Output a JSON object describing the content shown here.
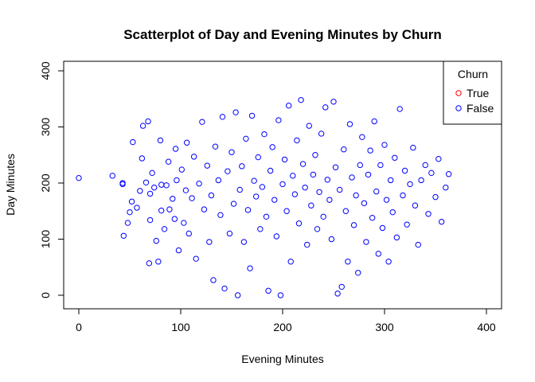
{
  "chart_data": {
    "type": "scatter",
    "title": "Scatterplot of Day and Evening Minutes by Churn",
    "xlabel": "Evening Minutes",
    "ylabel": "Day Minutes",
    "xlim": [
      0,
      400
    ],
    "ylim": [
      0,
      400
    ],
    "x_ticks": [
      0,
      100,
      200,
      300,
      400
    ],
    "y_ticks": [
      0,
      100,
      200,
      300,
      400
    ],
    "grid": false,
    "legend": {
      "title": "Churn",
      "placement": "top-right",
      "entries": [
        {
          "label": "True",
          "color": "#ff0000"
        },
        {
          "label": "False",
          "color": "#0000ff"
        }
      ]
    },
    "series": [
      {
        "name": "True",
        "color": "#ff0000",
        "points": []
      },
      {
        "name": "False",
        "color": "#0000ff",
        "points": [
          [
            0,
            209
          ],
          [
            33,
            213
          ],
          [
            43,
            200
          ],
          [
            43,
            198
          ],
          [
            44,
            106
          ],
          [
            48,
            129
          ],
          [
            50,
            148
          ],
          [
            52,
            167
          ],
          [
            53,
            273
          ],
          [
            57,
            156
          ],
          [
            60,
            186
          ],
          [
            62,
            244
          ],
          [
            63,
            302
          ],
          [
            66,
            201
          ],
          [
            68,
            310
          ],
          [
            69,
            57
          ],
          [
            70,
            181
          ],
          [
            70,
            134
          ],
          [
            72,
            218
          ],
          [
            74,
            192
          ],
          [
            76,
            97
          ],
          [
            78,
            60
          ],
          [
            80,
            276
          ],
          [
            81,
            197
          ],
          [
            81,
            151
          ],
          [
            84,
            118
          ],
          [
            86,
            196
          ],
          [
            88,
            238
          ],
          [
            89,
            153
          ],
          [
            92,
            172
          ],
          [
            94,
            136
          ],
          [
            95,
            261
          ],
          [
            96,
            205
          ],
          [
            98,
            80
          ],
          [
            101,
            224
          ],
          [
            103,
            129
          ],
          [
            105,
            187
          ],
          [
            106,
            272
          ],
          [
            108,
            110
          ],
          [
            111,
            173
          ],
          [
            113,
            247
          ],
          [
            115,
            65
          ],
          [
            118,
            199
          ],
          [
            121,
            309
          ],
          [
            123,
            153
          ],
          [
            126,
            231
          ],
          [
            128,
            95
          ],
          [
            130,
            178
          ],
          [
            132,
            27
          ],
          [
            134,
            265
          ],
          [
            137,
            205
          ],
          [
            139,
            143
          ],
          [
            141,
            318
          ],
          [
            143,
            12
          ],
          [
            146,
            221
          ],
          [
            148,
            110
          ],
          [
            150,
            255
          ],
          [
            152,
            163
          ],
          [
            154,
            326
          ],
          [
            156,
            0
          ],
          [
            158,
            188
          ],
          [
            160,
            230
          ],
          [
            162,
            95
          ],
          [
            164,
            279
          ],
          [
            166,
            152
          ],
          [
            168,
            48
          ],
          [
            170,
            320
          ],
          [
            172,
            204
          ],
          [
            174,
            176
          ],
          [
            176,
            246
          ],
          [
            178,
            118
          ],
          [
            180,
            193
          ],
          [
            182,
            287
          ],
          [
            184,
            140
          ],
          [
            186,
            8
          ],
          [
            188,
            222
          ],
          [
            190,
            264
          ],
          [
            192,
            170
          ],
          [
            194,
            105
          ],
          [
            196,
            312
          ],
          [
            198,
            0
          ],
          [
            200,
            198
          ],
          [
            202,
            242
          ],
          [
            204,
            150
          ],
          [
            206,
            338
          ],
          [
            208,
            60
          ],
          [
            210,
            213
          ],
          [
            212,
            180
          ],
          [
            214,
            276
          ],
          [
            216,
            128
          ],
          [
            218,
            348
          ],
          [
            220,
            234
          ],
          [
            222,
            192
          ],
          [
            224,
            90
          ],
          [
            226,
            302
          ],
          [
            228,
            160
          ],
          [
            230,
            215
          ],
          [
            232,
            250
          ],
          [
            234,
            118
          ],
          [
            236,
            184
          ],
          [
            238,
            288
          ],
          [
            240,
            140
          ],
          [
            242,
            335
          ],
          [
            244,
            206
          ],
          [
            246,
            170
          ],
          [
            248,
            100
          ],
          [
            250,
            345
          ],
          [
            252,
            228
          ],
          [
            254,
            3
          ],
          [
            256,
            188
          ],
          [
            258,
            15
          ],
          [
            260,
            260
          ],
          [
            262,
            150
          ],
          [
            264,
            60
          ],
          [
            266,
            305
          ],
          [
            268,
            210
          ],
          [
            270,
            125
          ],
          [
            272,
            178
          ],
          [
            274,
            40
          ],
          [
            276,
            232
          ],
          [
            278,
            282
          ],
          [
            280,
            164
          ],
          [
            282,
            95
          ],
          [
            284,
            215
          ],
          [
            286,
            258
          ],
          [
            288,
            138
          ],
          [
            290,
            310
          ],
          [
            292,
            185
          ],
          [
            294,
            74
          ],
          [
            296,
            232
          ],
          [
            298,
            120
          ],
          [
            300,
            268
          ],
          [
            302,
            170
          ],
          [
            304,
            60
          ],
          [
            306,
            205
          ],
          [
            308,
            148
          ],
          [
            310,
            245
          ],
          [
            312,
            103
          ],
          [
            315,
            332
          ],
          [
            318,
            178
          ],
          [
            320,
            222
          ],
          [
            322,
            126
          ],
          [
            325,
            198
          ],
          [
            328,
            263
          ],
          [
            330,
            160
          ],
          [
            333,
            90
          ],
          [
            336,
            205
          ],
          [
            340,
            232
          ],
          [
            343,
            145
          ],
          [
            346,
            218
          ],
          [
            350,
            175
          ],
          [
            353,
            243
          ],
          [
            356,
            131
          ],
          [
            360,
            192
          ],
          [
            363,
            216
          ]
        ]
      }
    ]
  }
}
